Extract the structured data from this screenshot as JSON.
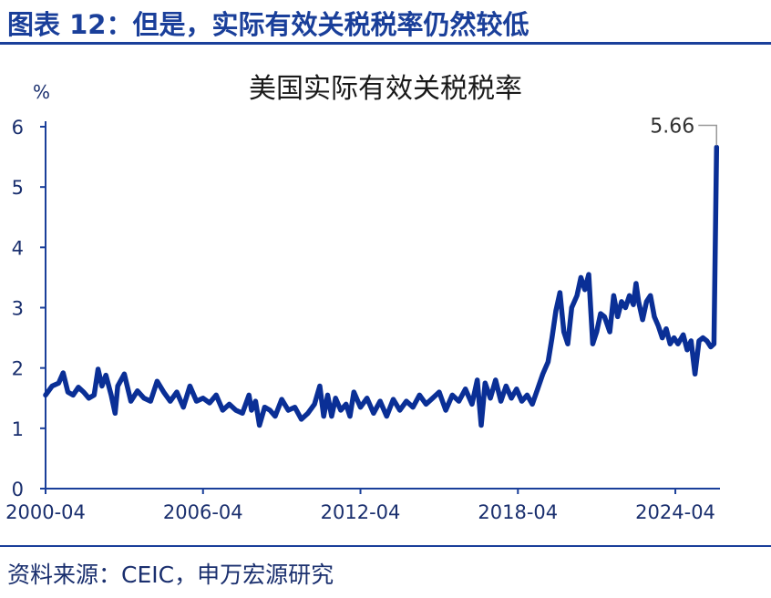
{
  "header": {
    "figure_title": "图表 12：但是，实际有效关税税率仍然较低"
  },
  "footer": {
    "source": "资料来源：CEIC，申万宏源研究"
  },
  "colors": {
    "series": "#0a2f96",
    "axis": "#1a3f9a",
    "text": "#1a2f6e",
    "rule": "#1a3f9a",
    "leader": "#999999"
  },
  "chart_data": {
    "type": "line",
    "title": "美国实际有效关税税率",
    "ylabel": "%",
    "xlabel": "",
    "ylim": [
      0,
      6
    ],
    "y_ticks": [
      0,
      1,
      2,
      3,
      4,
      5,
      6
    ],
    "x_ticks": [
      "2000-04",
      "2006-04",
      "2012-04",
      "2018-04",
      "2024-04"
    ],
    "grid": false,
    "legend": "none",
    "series": [
      {
        "values": [
          [
            2000.25,
            1.55
          ],
          [
            2000.5,
            1.7
          ],
          [
            2000.75,
            1.75
          ],
          [
            2000.92,
            1.92
          ],
          [
            2001.1,
            1.6
          ],
          [
            2001.3,
            1.55
          ],
          [
            2001.5,
            1.68
          ],
          [
            2001.7,
            1.6
          ],
          [
            2001.9,
            1.5
          ],
          [
            2002.1,
            1.55
          ],
          [
            2002.25,
            1.98
          ],
          [
            2002.4,
            1.7
          ],
          [
            2002.55,
            1.88
          ],
          [
            2002.75,
            1.55
          ],
          [
            2002.9,
            1.25
          ],
          [
            2003.0,
            1.7
          ],
          [
            2003.25,
            1.9
          ],
          [
            2003.5,
            1.45
          ],
          [
            2003.75,
            1.62
          ],
          [
            2004.0,
            1.5
          ],
          [
            2004.25,
            1.45
          ],
          [
            2004.5,
            1.78
          ],
          [
            2004.75,
            1.6
          ],
          [
            2005.0,
            1.45
          ],
          [
            2005.25,
            1.6
          ],
          [
            2005.5,
            1.35
          ],
          [
            2005.75,
            1.7
          ],
          [
            2006.0,
            1.45
          ],
          [
            2006.25,
            1.5
          ],
          [
            2006.5,
            1.42
          ],
          [
            2006.75,
            1.55
          ],
          [
            2007.0,
            1.3
          ],
          [
            2007.25,
            1.4
          ],
          [
            2007.5,
            1.3
          ],
          [
            2007.75,
            1.25
          ],
          [
            2008.0,
            1.55
          ],
          [
            2008.1,
            1.3
          ],
          [
            2008.25,
            1.45
          ],
          [
            2008.4,
            1.05
          ],
          [
            2008.6,
            1.35
          ],
          [
            2008.8,
            1.3
          ],
          [
            2009.0,
            1.2
          ],
          [
            2009.25,
            1.48
          ],
          [
            2009.5,
            1.3
          ],
          [
            2009.75,
            1.35
          ],
          [
            2010.0,
            1.15
          ],
          [
            2010.25,
            1.25
          ],
          [
            2010.5,
            1.4
          ],
          [
            2010.7,
            1.7
          ],
          [
            2010.85,
            1.2
          ],
          [
            2011.0,
            1.55
          ],
          [
            2011.15,
            1.2
          ],
          [
            2011.3,
            1.5
          ],
          [
            2011.5,
            1.3
          ],
          [
            2011.7,
            1.4
          ],
          [
            2011.85,
            1.2
          ],
          [
            2012.0,
            1.6
          ],
          [
            2012.25,
            1.35
          ],
          [
            2012.5,
            1.5
          ],
          [
            2012.75,
            1.25
          ],
          [
            2013.0,
            1.45
          ],
          [
            2013.25,
            1.2
          ],
          [
            2013.5,
            1.48
          ],
          [
            2013.75,
            1.3
          ],
          [
            2014.0,
            1.45
          ],
          [
            2014.25,
            1.35
          ],
          [
            2014.5,
            1.55
          ],
          [
            2014.75,
            1.4
          ],
          [
            2015.0,
            1.5
          ],
          [
            2015.25,
            1.6
          ],
          [
            2015.5,
            1.3
          ],
          [
            2015.75,
            1.55
          ],
          [
            2016.0,
            1.45
          ],
          [
            2016.25,
            1.65
          ],
          [
            2016.5,
            1.4
          ],
          [
            2016.7,
            1.8
          ],
          [
            2016.85,
            1.05
          ],
          [
            2017.0,
            1.75
          ],
          [
            2017.2,
            1.5
          ],
          [
            2017.4,
            1.8
          ],
          [
            2017.6,
            1.45
          ],
          [
            2017.8,
            1.7
          ],
          [
            2018.0,
            1.5
          ],
          [
            2018.2,
            1.65
          ],
          [
            2018.4,
            1.45
          ],
          [
            2018.6,
            1.55
          ],
          [
            2018.8,
            1.4
          ],
          [
            2019.0,
            1.65
          ],
          [
            2019.2,
            1.9
          ],
          [
            2019.4,
            2.1
          ],
          [
            2019.55,
            2.5
          ],
          [
            2019.7,
            2.95
          ],
          [
            2019.85,
            3.25
          ],
          [
            2020.0,
            2.6
          ],
          [
            2020.15,
            2.4
          ],
          [
            2020.3,
            3.0
          ],
          [
            2020.5,
            3.2
          ],
          [
            2020.65,
            3.5
          ],
          [
            2020.8,
            3.3
          ],
          [
            2020.95,
            3.55
          ],
          [
            2021.1,
            2.4
          ],
          [
            2021.25,
            2.6
          ],
          [
            2021.4,
            2.9
          ],
          [
            2021.55,
            2.85
          ],
          [
            2021.75,
            2.6
          ],
          [
            2021.9,
            3.2
          ],
          [
            2022.05,
            2.85
          ],
          [
            2022.2,
            3.1
          ],
          [
            2022.35,
            3.0
          ],
          [
            2022.5,
            3.2
          ],
          [
            2022.65,
            3.05
          ],
          [
            2022.75,
            3.4
          ],
          [
            2022.85,
            3.1
          ],
          [
            2023.0,
            2.8
          ],
          [
            2023.15,
            3.1
          ],
          [
            2023.3,
            3.2
          ],
          [
            2023.45,
            2.85
          ],
          [
            2023.6,
            2.7
          ],
          [
            2023.75,
            2.5
          ],
          [
            2023.9,
            2.65
          ],
          [
            2024.05,
            2.4
          ],
          [
            2024.2,
            2.5
          ],
          [
            2024.35,
            2.4
          ],
          [
            2024.55,
            2.55
          ],
          [
            2024.7,
            2.3
          ],
          [
            2024.85,
            2.45
          ],
          [
            2025.0,
            1.9
          ],
          [
            2025.15,
            2.45
          ],
          [
            2025.3,
            2.5
          ],
          [
            2025.45,
            2.45
          ],
          [
            2025.6,
            2.35
          ],
          [
            2025.72,
            2.4
          ],
          [
            2025.82,
            5.66
          ]
        ]
      }
    ],
    "annotations": [
      {
        "label": "5.66",
        "x": 2025.82,
        "y": 5.66
      }
    ]
  }
}
